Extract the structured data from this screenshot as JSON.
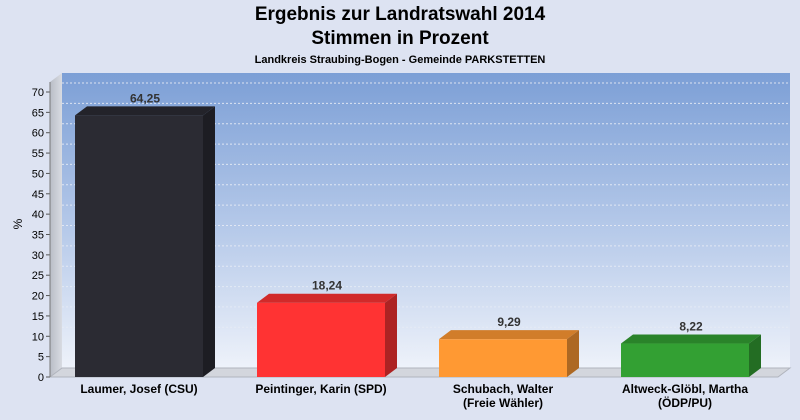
{
  "chart_data": {
    "type": "bar",
    "title": "Ergebnis zur Landratswahl 2014",
    "subtitle_1": "Stimmen in Prozent",
    "subtitle_2": "Landkreis Straubing-Bogen - Gemeinde PARKSTETTEN",
    "xlabel": "",
    "ylabel": "%",
    "ylim": [
      0,
      70
    ],
    "yticks": [
      0,
      5,
      10,
      15,
      20,
      25,
      30,
      35,
      40,
      45,
      50,
      55,
      60,
      65,
      70
    ],
    "grid": true,
    "categories": [
      [
        "Laumer, Josef (CSU)"
      ],
      [
        "Peintinger, Karin (SPD)"
      ],
      [
        "Schubach, Walter",
        "(Freie Wähler)"
      ],
      [
        "Altweck-Glöbl, Martha",
        "(ÖDP/PU)"
      ]
    ],
    "values": [
      64.25,
      18.24,
      9.29,
      8.22
    ],
    "value_labels": [
      "64,25",
      "18,24",
      "9,29",
      "8,22"
    ],
    "colors": [
      "#2b2b33",
      "#ff3333",
      "#ff9933",
      "#33a033"
    ]
  }
}
